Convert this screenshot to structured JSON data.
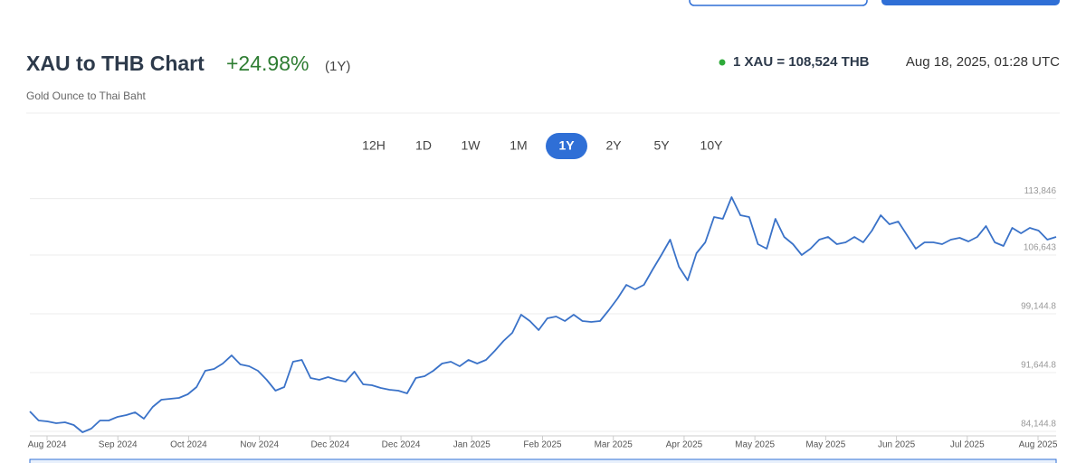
{
  "header": {
    "title": "XAU to THB Chart",
    "change": "+24.98%",
    "period": "(1Y)",
    "subtitle": "Gold Ounce to Thai Baht",
    "rate": "1 XAU = 108,524 THB",
    "timestamp": "Aug 18, 2025, 01:28 UTC"
  },
  "tabs": {
    "items": [
      "12H",
      "1D",
      "1W",
      "1M",
      "1Y",
      "2Y",
      "5Y",
      "10Y"
    ],
    "active_index": 4
  },
  "chart_data": {
    "type": "line",
    "series": [
      {
        "color": "#3a72c8",
        "values": [
          86683,
          85530,
          85414,
          85183,
          85299,
          84953,
          84030,
          84491,
          85530,
          85530,
          85991,
          86222,
          86568,
          85760,
          87260,
          88183,
          88299,
          88414,
          88876,
          89799,
          91876,
          92107,
          92799,
          93837,
          92683,
          92453,
          91876,
          90722,
          89337,
          89799,
          93030,
          93260,
          90953,
          90722,
          91068,
          90722,
          90491,
          91760,
          90145,
          90030,
          89683,
          89453,
          89337,
          88991,
          90953,
          91183,
          91876,
          92799,
          93030,
          92453,
          93260,
          92799,
          93260,
          94414,
          95683,
          96722,
          99030,
          98222,
          97068,
          98568,
          98799,
          98222,
          99030,
          98222,
          98107,
          98222,
          99607,
          101107,
          102837,
          102260,
          102837,
          104799,
          106645,
          108607,
          105145,
          103414,
          106876,
          108260,
          111491,
          111260,
          114030,
          111722,
          111491,
          108030,
          107453,
          111260,
          108953,
          108030,
          106645,
          107453,
          108607,
          108953,
          108030,
          108260,
          108953,
          108260,
          109760,
          111722,
          110568,
          110914,
          109183,
          107453,
          108260,
          108260,
          108030,
          108607,
          108837,
          108376,
          108953,
          110337,
          108260,
          107799,
          110107,
          109414,
          110107,
          109760,
          108607,
          108953
        ]
      }
    ],
    "x_labels": [
      "Aug 2024",
      "Sep 2024",
      "Oct 2024",
      "Nov 2024",
      "Dec 2024",
      "Dec 2024",
      "Jan 2025",
      "Feb 2025",
      "Mar 2025",
      "Apr 2025",
      "May 2025",
      "May 2025",
      "Jun 2025",
      "Jul 2025",
      "Aug 2025"
    ],
    "ylim": [
      83568,
      115530
    ],
    "yticks": [
      {
        "value": 84144.8,
        "label": "84,144.8"
      },
      {
        "value": 91644.8,
        "label": "91,644.8"
      },
      {
        "value": 99144.8,
        "label": "99,144.8"
      },
      {
        "value": 106643,
        "label": "106,643"
      },
      {
        "value": 113846,
        "label": "113,846"
      }
    ],
    "grid": true
  }
}
